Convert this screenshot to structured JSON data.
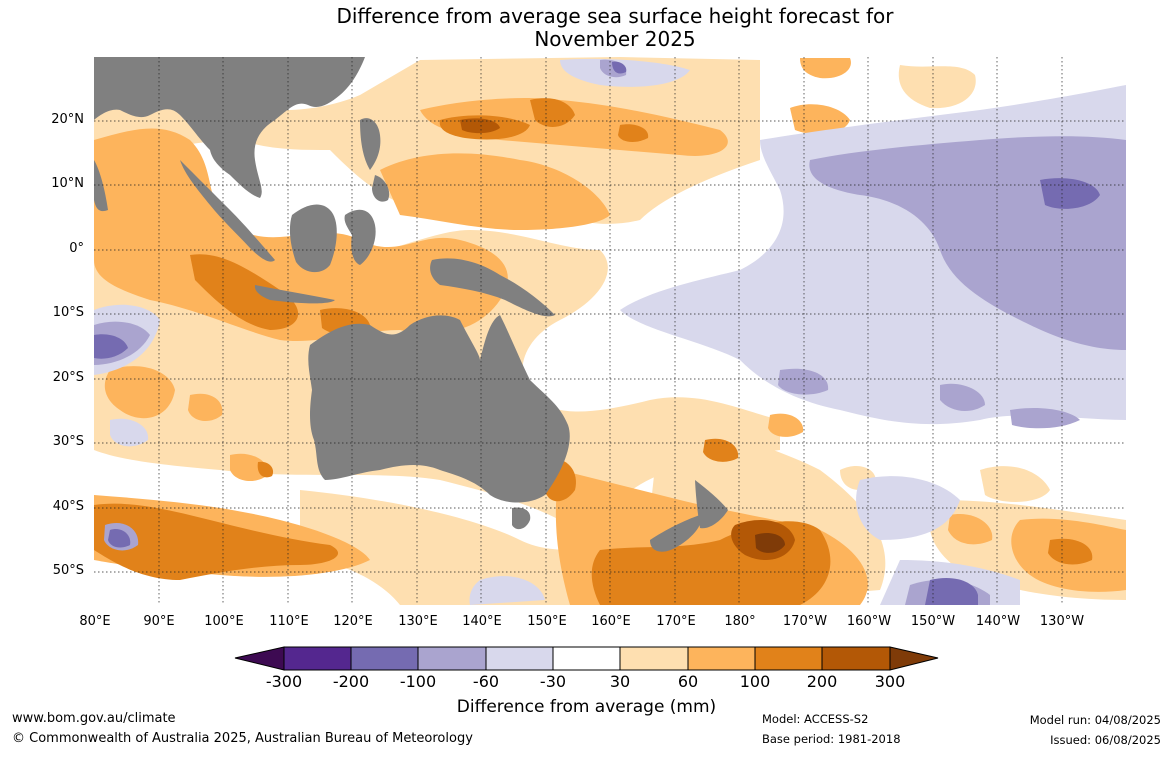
{
  "header": {
    "title_line1": "Difference from average sea surface height forecast for",
    "title_line2": "November 2025"
  },
  "map": {
    "lat_labels": [
      "20°N",
      "10°N",
      "0°",
      "10°S",
      "20°S",
      "30°S",
      "40°S",
      "50°S"
    ],
    "lon_labels": [
      "80°E",
      "90°E",
      "100°E",
      "110°E",
      "120°E",
      "130°E",
      "140°E",
      "150°E",
      "160°E",
      "170°E",
      "180°",
      "170°W",
      "160°W",
      "150°W",
      "140°W",
      "130°W"
    ],
    "land_color": "#808080"
  },
  "legend": {
    "colors": [
      "#3d0a52",
      "#54278f",
      "#756bb1",
      "#aaa4cf",
      "#d8d8ec",
      "#ffffff",
      "#fedfb0",
      "#fdb45c",
      "#e1821a",
      "#b35806",
      "#7f3b08"
    ],
    "ticks": [
      "-300",
      "-200",
      "-100",
      "-60",
      "-30",
      "30",
      "60",
      "100",
      "200",
      "300"
    ],
    "title": "Difference from average (mm)"
  },
  "footer": {
    "website": "www.bom.gov.au/climate",
    "copyright": "© Commonwealth of Australia 2025, Australian Bureau of Meteorology",
    "model": "Model: ACCESS-S2",
    "base_period": "Base period: 1981-2018",
    "model_run": "Model run: 04/08/2025",
    "issued": "Issued: 06/08/2025"
  }
}
